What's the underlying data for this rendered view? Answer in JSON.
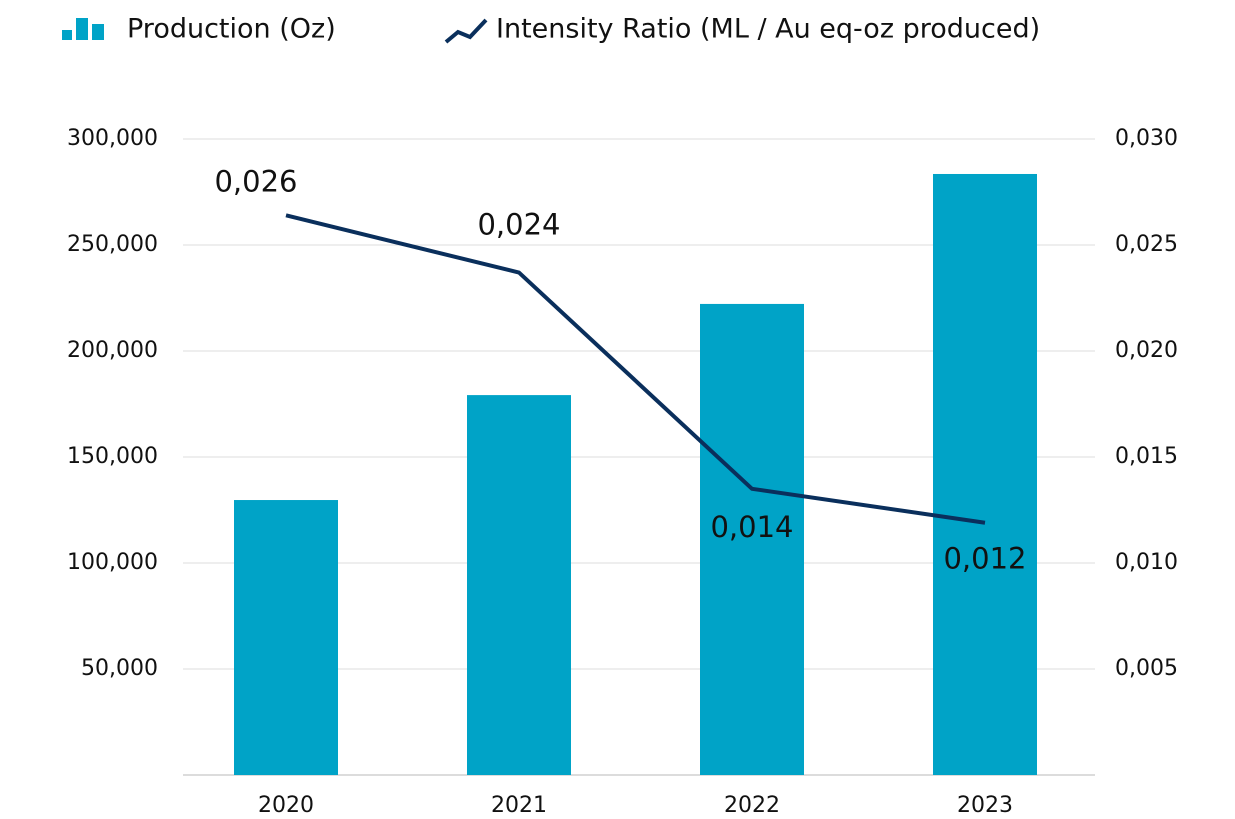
{
  "chart_data": {
    "type": "bar+line",
    "categories": [
      "2020",
      "2021",
      "2022",
      "2023"
    ],
    "series": [
      {
        "name": "Production (Oz)",
        "type": "bar",
        "color": "#00a3c7",
        "values": [
          129700,
          179200,
          222200,
          283500
        ]
      },
      {
        "name": "Intensity Ratio (ML / Au eq-oz produced)",
        "type": "line",
        "axis": "y2",
        "color": "#0a2f5c",
        "values": [
          0.0264,
          0.0237,
          0.0135,
          0.0119
        ],
        "value_labels": [
          "0,026",
          "0,024",
          "0,014",
          "0,012"
        ]
      }
    ],
    "ylim": [
      0,
      300000
    ],
    "yticks": [
      {
        "value": 50000,
        "label": "50,000"
      },
      {
        "value": 100000,
        "label": "100,000"
      },
      {
        "value": 150000,
        "label": "150,000"
      },
      {
        "value": 200000,
        "label": "200,000"
      },
      {
        "value": 250000,
        "label": "250,000"
      },
      {
        "value": 300000,
        "label": "300,000"
      }
    ],
    "y2lim": [
      0,
      0.03
    ],
    "y2ticks": [
      {
        "value": 0.005,
        "label": "0,005"
      },
      {
        "value": 0.01,
        "label": "0,010"
      },
      {
        "value": 0.015,
        "label": "0,015"
      },
      {
        "value": 0.02,
        "label": "0,020"
      },
      {
        "value": 0.025,
        "label": "0,025"
      },
      {
        "value": 0.03,
        "label": "0,030"
      }
    ],
    "grid": true
  }
}
